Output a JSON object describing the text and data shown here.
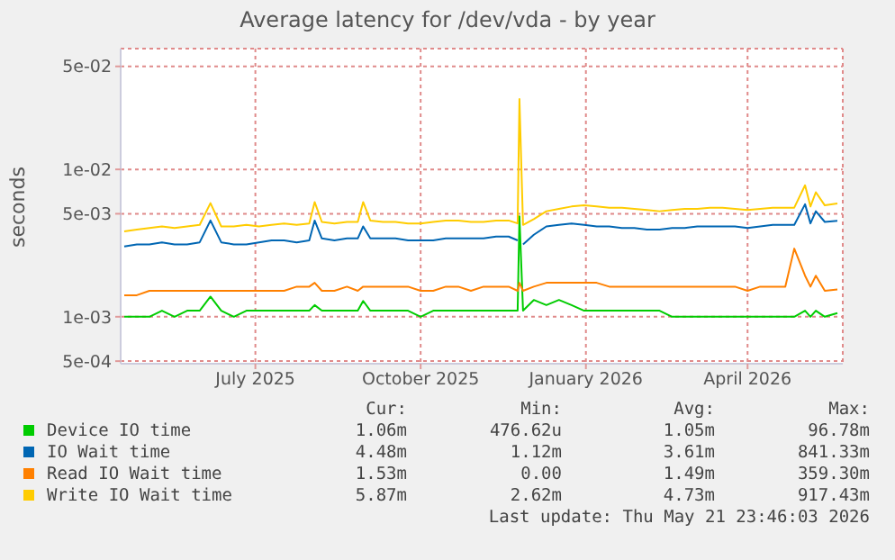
{
  "chart_data": {
    "type": "line",
    "title": "Average latency for /dev/vda - by year",
    "ylabel": "seconds",
    "log": "y",
    "grid": true,
    "legend": "bottom",
    "marker": "none",
    "line_style": "solid",
    "x": [
      "2025-04-19",
      "2025-04-26",
      "2025-05-03",
      "2025-05-10",
      "2025-05-17",
      "2025-05-24",
      "2025-05-31",
      "2025-06-06",
      "2025-06-12",
      "2025-06-19",
      "2025-06-26",
      "2025-07-03",
      "2025-07-10",
      "2025-07-17",
      "2025-07-24",
      "2025-07-31",
      "2025-08-03",
      "2025-08-07",
      "2025-08-14",
      "2025-08-21",
      "2025-08-27",
      "2025-08-30",
      "2025-09-03",
      "2025-09-10",
      "2025-09-17",
      "2025-09-24",
      "2025-10-01",
      "2025-10-08",
      "2025-10-15",
      "2025-10-22",
      "2025-10-29",
      "2025-11-05",
      "2025-11-12",
      "2025-11-19",
      "2025-11-24",
      "2025-11-25",
      "2025-11-27",
      "2025-12-03",
      "2025-12-10",
      "2025-12-17",
      "2025-12-24",
      "2025-12-31",
      "2026-01-07",
      "2026-01-14",
      "2026-01-21",
      "2026-01-28",
      "2026-02-04",
      "2026-02-11",
      "2026-02-18",
      "2026-02-25",
      "2026-03-04",
      "2026-03-11",
      "2026-03-18",
      "2026-03-25",
      "2026-04-01",
      "2026-04-08",
      "2026-04-15",
      "2026-04-22",
      "2026-04-27",
      "2026-05-03",
      "2026-05-06",
      "2026-05-09",
      "2026-05-14",
      "2026-05-21"
    ],
    "xlim": [
      "2025-04-17",
      "2026-05-24"
    ],
    "xticks": [
      {
        "value": "2025-07-01",
        "label": "July 2025"
      },
      {
        "value": "2025-10-01",
        "label": "October 2025"
      },
      {
        "value": "2026-01-01",
        "label": "January 2026"
      },
      {
        "value": "2026-04-01",
        "label": "April 2026"
      }
    ],
    "ylim": [
      0.00048,
      0.066
    ],
    "yticks": [
      {
        "value": 0.0005,
        "label": "5e-04"
      },
      {
        "value": 0.001,
        "label": "1e-03"
      },
      {
        "value": 0.005,
        "label": "5e-03"
      },
      {
        "value": 0.01,
        "label": "1e-02"
      },
      {
        "value": 0.05,
        "label": "5e-02"
      }
    ],
    "series": [
      {
        "name": "Device IO time",
        "color": "#00cc00",
        "values": [
          0.001,
          0.001,
          0.001,
          0.0011,
          0.001,
          0.0011,
          0.0011,
          0.00137,
          0.0011,
          0.001,
          0.0011,
          0.0011,
          0.0011,
          0.0011,
          0.0011,
          0.0011,
          0.0012,
          0.0011,
          0.0011,
          0.0011,
          0.0011,
          0.00128,
          0.0011,
          0.0011,
          0.0011,
          0.0011,
          0.001,
          0.0011,
          0.0011,
          0.0011,
          0.0011,
          0.0011,
          0.0011,
          0.0011,
          0.0011,
          0.0048,
          0.0011,
          0.0013,
          0.0012,
          0.0013,
          0.0012,
          0.0011,
          0.0011,
          0.0011,
          0.0011,
          0.0011,
          0.0011,
          0.0011,
          0.001,
          0.001,
          0.001,
          0.001,
          0.001,
          0.001,
          0.001,
          0.001,
          0.001,
          0.001,
          0.001,
          0.0011,
          0.001,
          0.0011,
          0.001,
          0.00106
        ]
      },
      {
        "name": "IO Wait time",
        "color": "#0066b3",
        "values": [
          0.003,
          0.0031,
          0.0031,
          0.0032,
          0.0031,
          0.0031,
          0.0032,
          0.0045,
          0.0032,
          0.0031,
          0.0031,
          0.0032,
          0.0033,
          0.0033,
          0.0032,
          0.0033,
          0.0045,
          0.0034,
          0.0033,
          0.0034,
          0.0034,
          0.0041,
          0.0034,
          0.0034,
          0.0034,
          0.0033,
          0.0033,
          0.0033,
          0.0034,
          0.0034,
          0.0034,
          0.0034,
          0.0035,
          0.0035,
          0.0033,
          null,
          0.0031,
          0.0036,
          0.0041,
          0.0042,
          0.0043,
          0.0042,
          0.0041,
          0.0041,
          0.004,
          0.004,
          0.0039,
          0.0039,
          0.004,
          0.004,
          0.0041,
          0.0041,
          0.0041,
          0.0041,
          0.004,
          0.0041,
          0.0042,
          0.0042,
          0.0042,
          0.0058,
          0.0043,
          0.0052,
          0.0044,
          0.00448
        ]
      },
      {
        "name": "Read IO Wait time",
        "color": "#ff8000",
        "values": [
          0.0014,
          0.0014,
          0.0015,
          0.0015,
          0.0015,
          0.0015,
          0.0015,
          0.0015,
          0.0015,
          0.0015,
          0.0015,
          0.0015,
          0.0015,
          0.0015,
          0.0016,
          0.0016,
          0.0017,
          0.0015,
          0.0015,
          0.0016,
          0.0015,
          0.0016,
          0.0016,
          0.0016,
          0.0016,
          0.0016,
          0.0015,
          0.0015,
          0.0016,
          0.0016,
          0.0015,
          0.0016,
          0.0016,
          0.0016,
          0.0015,
          0.0017,
          0.0015,
          0.0016,
          0.0017,
          0.0017,
          0.0017,
          0.0017,
          0.0017,
          0.0016,
          0.0016,
          0.0016,
          0.0016,
          0.0016,
          0.0016,
          0.0016,
          0.0016,
          0.0016,
          0.0016,
          0.0016,
          0.0015,
          0.0016,
          0.0016,
          0.0016,
          0.0029,
          0.0019,
          0.0016,
          0.0019,
          0.0015,
          0.00153
        ]
      },
      {
        "name": "Write IO Wait time",
        "color": "#ffcc00",
        "values": [
          0.0038,
          0.0039,
          0.004,
          0.0041,
          0.004,
          0.0041,
          0.0042,
          0.0059,
          0.0041,
          0.0041,
          0.0042,
          0.0041,
          0.0042,
          0.0043,
          0.0042,
          0.0043,
          0.006,
          0.0044,
          0.0043,
          0.0044,
          0.0044,
          0.006,
          0.0045,
          0.0044,
          0.0044,
          0.0043,
          0.0043,
          0.0044,
          0.0045,
          0.0045,
          0.0044,
          0.0044,
          0.0045,
          0.0045,
          0.0043,
          0.03,
          0.0042,
          0.0046,
          0.0052,
          0.0054,
          0.0056,
          0.0057,
          0.0056,
          0.0055,
          0.0055,
          0.0054,
          0.0053,
          0.0052,
          0.0053,
          0.0054,
          0.0054,
          0.0055,
          0.0055,
          0.0054,
          0.0053,
          0.0054,
          0.0055,
          0.0055,
          0.0055,
          0.0078,
          0.0056,
          0.007,
          0.0057,
          0.00587
        ]
      }
    ],
    "annotations": [
      "Cur:",
      "Min:",
      "Avg:",
      "Max:",
      "1.06m",
      "476.62u",
      "1.05m",
      "96.78m",
      "4.48m",
      "1.12m",
      "3.61m",
      "841.33m",
      "1.53m",
      "0.00",
      "1.49m",
      "359.30m",
      "5.87m",
      "2.62m",
      "4.73m",
      "917.43m",
      "Last update: Thu May 21 23:46:03 2026"
    ]
  }
}
